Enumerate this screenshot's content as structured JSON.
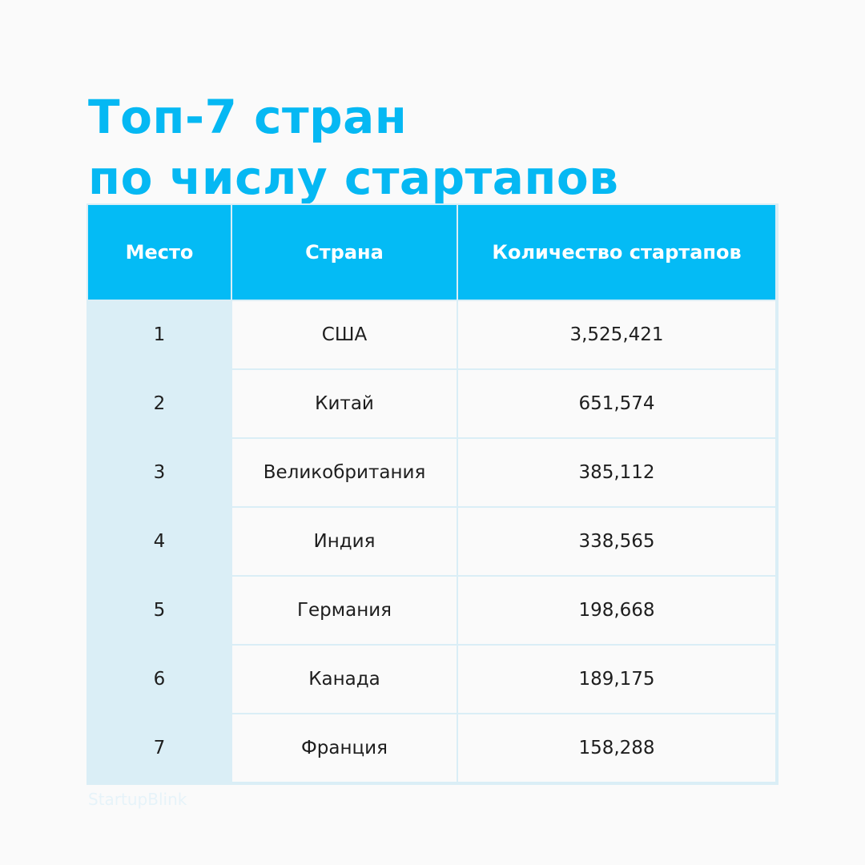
{
  "title": {
    "line1": "Топ-7 стран",
    "line2": "по числу стартапов"
  },
  "table": {
    "headers": [
      "Место",
      "Страна",
      "Количество стартапов"
    ],
    "rows": [
      {
        "rank": "1",
        "country": "США",
        "count": "3,525,421"
      },
      {
        "rank": "2",
        "country": "Китай",
        "count": "651,574"
      },
      {
        "rank": "3",
        "country": "Великобритания",
        "count": "385,112"
      },
      {
        "rank": "4",
        "country": "Индия",
        "count": "338,565"
      },
      {
        "rank": "5",
        "country": "Германия",
        "count": "198,668"
      },
      {
        "rank": "6",
        "country": "Канада",
        "count": "189,175"
      },
      {
        "rank": "7",
        "country": "Франция",
        "count": "158,288"
      }
    ]
  },
  "source": "StartupBlink",
  "colors": {
    "accent": "#05b8f3",
    "header_bg": "#04bbf5",
    "rank_column_bg": "#daeef6",
    "grid_line": "#daeef6",
    "background": "#fafafa",
    "text": "#1e1e1e"
  }
}
